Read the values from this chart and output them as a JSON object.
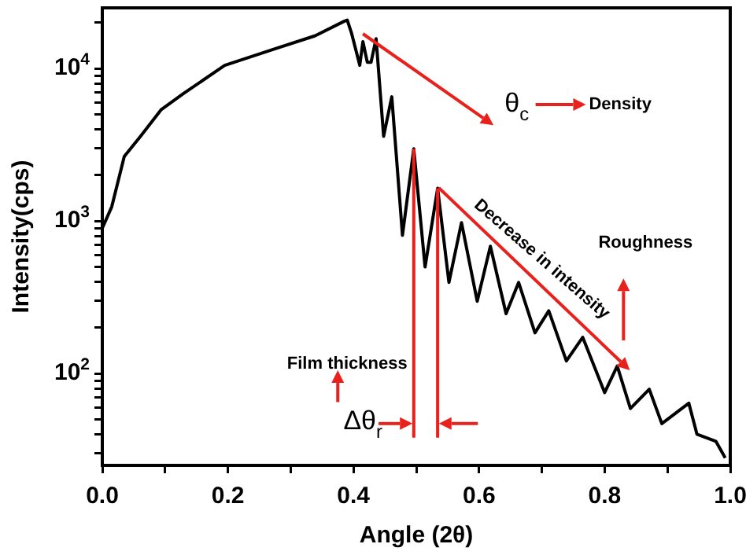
{
  "chart_data": {
    "type": "line",
    "xlabel": "Angle (2θ)",
    "ylabel": "Intensity(cps)",
    "x": [
      0.0,
      0.015,
      0.035,
      0.061,
      0.094,
      0.129,
      0.195,
      0.271,
      0.339,
      0.385,
      0.39,
      0.397,
      0.41,
      0.415,
      0.422,
      0.428,
      0.436,
      0.448,
      0.461,
      0.478,
      0.496,
      0.514,
      0.534,
      0.552,
      0.572,
      0.597,
      0.618,
      0.643,
      0.663,
      0.689,
      0.711,
      0.739,
      0.765,
      0.8,
      0.82,
      0.841,
      0.871,
      0.891,
      0.934,
      0.947,
      0.977,
      0.992
    ],
    "series": [
      {
        "color": "#000000",
        "values": [
          900,
          1240,
          2650,
          3600,
          5390,
          6840,
          10500,
          13300,
          16400,
          20400,
          20800,
          17000,
          10500,
          15000,
          11000,
          11000,
          15700,
          3600,
          6530,
          807,
          2980,
          500,
          1640,
          396,
          977,
          298,
          684,
          247,
          396,
          185,
          258,
          121,
          173,
          75,
          112,
          59,
          79,
          47,
          64,
          40,
          36,
          28
        ]
      }
    ],
    "annotations": [
      "θ$_{c}$",
      "Density",
      "Decrease in intensity",
      "Roughness",
      "Film thickness",
      "Δθ$_{r}$"
    ],
    "ref_lines": [
      {
        "axis": "x",
        "value": 0.496,
        "color": "#e8211d"
      },
      {
        "axis": "x",
        "value": 0.534,
        "color": "#e8211d"
      }
    ],
    "xlim": [
      0,
      1
    ],
    "ylim": [
      25,
      25000
    ],
    "log": "y",
    "grid": false,
    "legend": false,
    "marker": "none",
    "line_style": "solid",
    "xticks": [
      {
        "value": 0,
        "label": "0.0"
      },
      {
        "value": 0.1,
        "label": null
      },
      {
        "value": 0.2,
        "label": "0.2"
      },
      {
        "value": 0.3,
        "label": null
      },
      {
        "value": 0.4,
        "label": "0.4"
      },
      {
        "value": 0.5,
        "label": null
      },
      {
        "value": 0.6,
        "label": "0.6"
      },
      {
        "value": 0.7,
        "label": null
      },
      {
        "value": 0.8,
        "label": "0.8"
      },
      {
        "value": 0.9,
        "label": null
      },
      {
        "value": 1,
        "label": "1.0"
      }
    ],
    "yticks": [
      {
        "value": 30,
        "label": null
      },
      {
        "value": 40,
        "label": null
      },
      {
        "value": 50,
        "label": null
      },
      {
        "value": 60,
        "label": null
      },
      {
        "value": 70,
        "label": null
      },
      {
        "value": 80,
        "label": null
      },
      {
        "value": 90,
        "label": null
      },
      {
        "value": 100,
        "label": "10$^{2}$"
      },
      {
        "value": 200,
        "label": null
      },
      {
        "value": 300,
        "label": null
      },
      {
        "value": 400,
        "label": null
      },
      {
        "value": 500,
        "label": null
      },
      {
        "value": 600,
        "label": null
      },
      {
        "value": 700,
        "label": null
      },
      {
        "value": 800,
        "label": null
      },
      {
        "value": 900,
        "label": null
      },
      {
        "value": 1000,
        "label": "10$^{3}$"
      },
      {
        "value": 2000,
        "label": null
      },
      {
        "value": 3000,
        "label": null
      },
      {
        "value": 4000,
        "label": null
      },
      {
        "value": 5000,
        "label": null
      },
      {
        "value": 6000,
        "label": null
      },
      {
        "value": 7000,
        "label": null
      },
      {
        "value": 8000,
        "label": null
      },
      {
        "value": 9000,
        "label": null
      },
      {
        "value": 10000,
        "label": "10$^{4}$"
      },
      {
        "value": 20000,
        "label": null
      }
    ]
  }
}
